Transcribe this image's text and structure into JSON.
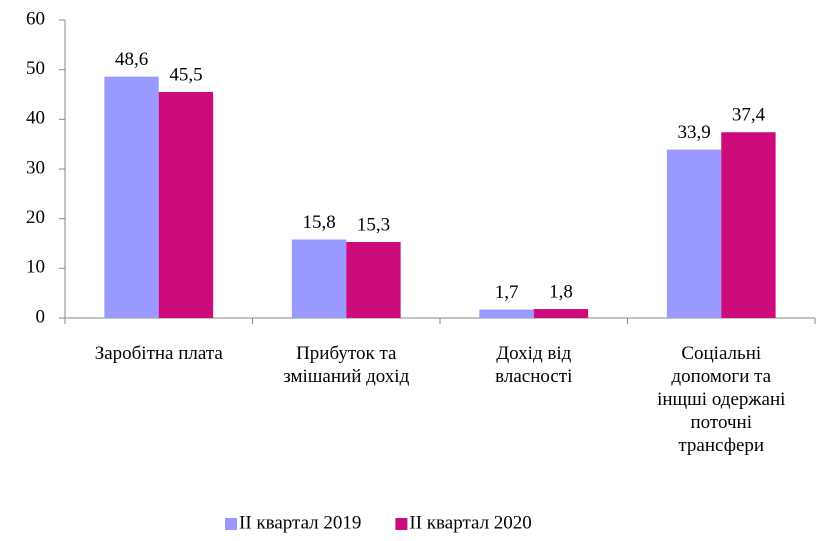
{
  "chart_data": {
    "type": "bar",
    "categories": [
      "Заробітна плата",
      "Прибуток та змішаний дохід",
      "Дохід від власності",
      "Соціальні допомоги та інщші одержані поточні трансфери"
    ],
    "series": [
      {
        "name": "II квартал 2019",
        "color": "#9999ff",
        "values": [
          48.6,
          15.8,
          1.7,
          33.9
        ],
        "value_labels": [
          "48,6",
          "15,8",
          "1,7",
          "33,9"
        ]
      },
      {
        "name": "II квартал 2020",
        "color": "#cc0a7a",
        "values": [
          45.5,
          15.3,
          1.8,
          37.4
        ],
        "value_labels": [
          "45,5",
          "15,3",
          "1,8",
          "37,4"
        ]
      }
    ],
    "ylim": [
      0,
      60
    ],
    "yticks": [
      0,
      10,
      20,
      30,
      40,
      50,
      60
    ],
    "grid": false,
    "legend": "bottom"
  }
}
